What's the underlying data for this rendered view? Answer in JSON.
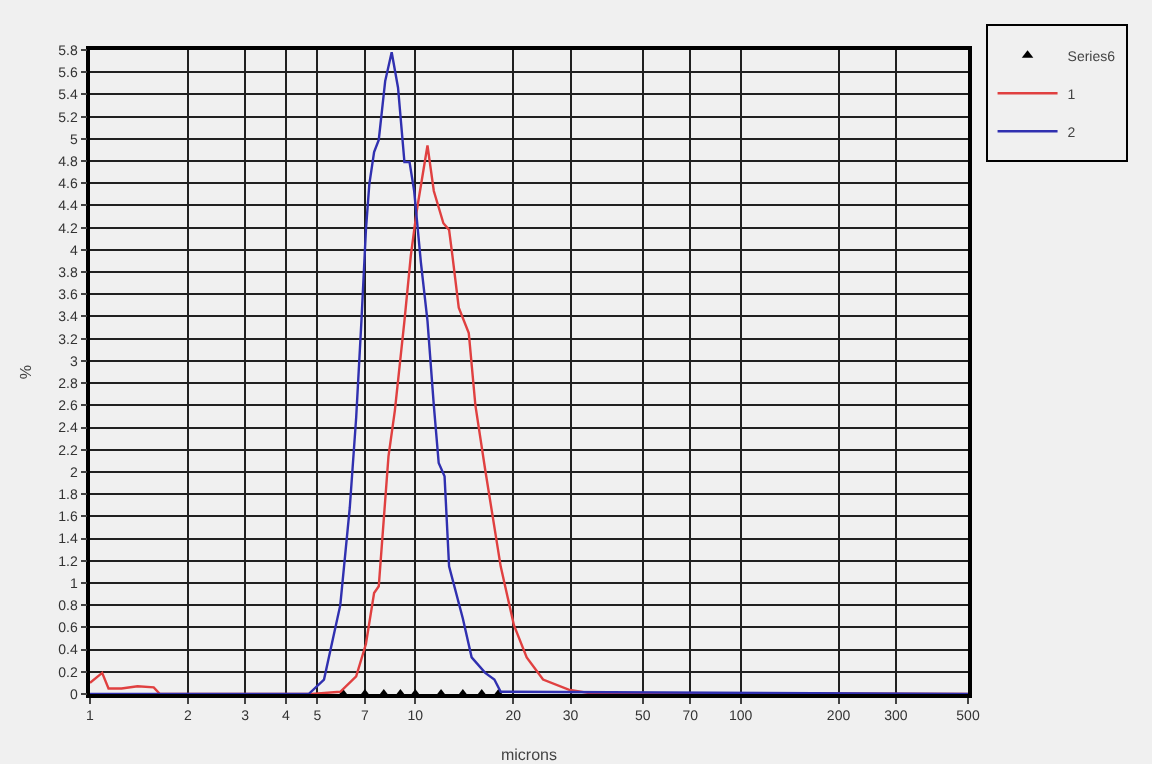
{
  "chart_data": {
    "type": "line",
    "xlabel": "microns",
    "ylabel": "%",
    "log": "x",
    "grid": true,
    "legend": "top right",
    "marker": "none",
    "line_style": "solid",
    "xlim": [
      1,
      500
    ],
    "xticks": [
      1,
      2,
      3,
      4,
      5,
      7,
      10,
      20,
      30,
      50,
      70,
      100,
      200,
      300,
      500
    ],
    "ylim": [
      0,
      5.8
    ],
    "yticks": [
      0,
      0.2,
      0.4,
      0.6,
      0.8,
      1,
      1.2,
      1.4,
      1.6,
      1.8,
      2,
      2.2,
      2.4,
      2.6,
      2.8,
      3,
      3.2,
      3.4,
      3.6,
      3.8,
      4,
      4.2,
      4.4,
      4.6,
      4.8,
      5,
      5.2,
      5.4,
      5.6,
      5.8
    ],
    "series": [
      {
        "name": "Series6",
        "type": "scatter",
        "marker": "triangle",
        "color": "#000000",
        "x": [
          6,
          7,
          8,
          9,
          10,
          12,
          14,
          16,
          18
        ],
        "values": [
          0,
          0,
          0,
          0,
          0,
          0,
          0,
          0,
          0
        ]
      },
      {
        "name": "1",
        "color": "#e04040",
        "x": [
          1,
          1.09,
          1.14,
          1.25,
          1.4,
          1.57,
          1.64,
          4.8,
          5.88,
          6.58,
          7.05,
          7.47,
          7.72,
          8.27,
          8.65,
          9.26,
          9.69,
          10.1,
          10.9,
          11.4,
          12.2,
          12.7,
          13,
          13.6,
          14.6,
          15.3,
          16.4,
          18.3,
          20.1,
          22,
          24.7,
          29.6,
          34,
          500
        ],
        "values": [
          0.1,
          0.19,
          0.05,
          0.05,
          0.07,
          0.06,
          0,
          0,
          0.02,
          0.16,
          0.45,
          0.91,
          0.97,
          2.14,
          2.55,
          3.36,
          3.95,
          4.35,
          4.94,
          4.53,
          4.24,
          4.18,
          3.95,
          3.48,
          3.25,
          2.6,
          2.02,
          1.15,
          0.62,
          0.33,
          0.13,
          0.04,
          0.01,
          0
        ]
      },
      {
        "name": "2",
        "color": "#3030b0",
        "x": [
          1,
          4.7,
          5.24,
          5.88,
          6.29,
          6.58,
          6.83,
          7.05,
          7.22,
          7.47,
          7.72,
          8.08,
          8.46,
          8.85,
          9.26,
          9.6,
          9.92,
          10.4,
          10.9,
          11.4,
          11.8,
          12.3,
          12.7,
          14,
          14.9,
          16.4,
          17.5,
          18.3,
          500
        ],
        "values": [
          0,
          0,
          0.13,
          0.8,
          1.68,
          2.49,
          3.36,
          4.18,
          4.59,
          4.88,
          4.99,
          5.52,
          5.78,
          5.46,
          4.79,
          4.79,
          4.53,
          3.89,
          3.36,
          2.6,
          2.08,
          1.96,
          1.15,
          0.68,
          0.33,
          0.19,
          0.13,
          0.02,
          0
        ]
      }
    ]
  }
}
